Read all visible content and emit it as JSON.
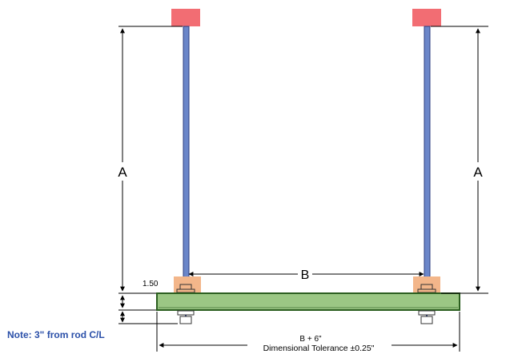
{
  "labels": {
    "dim_a_left": "A",
    "dim_a_right": "A",
    "dim_b": "B",
    "dim_150": "1.50",
    "dim_b_plus": "B + 6\"",
    "tolerance": "Dimensional Tolerance ±0.25\"",
    "note": "Note: 3\" from rod C/L"
  },
  "colors": {
    "rod_fill": "#6b86c9",
    "rod_edge": "#2d3f80",
    "ceiling_block": "#f26d73",
    "nut_highlight": "#f3b68a",
    "channel_fill": "#9bc784",
    "channel_edge": "#2b5e1f",
    "note_text": "#2a4fa8"
  }
}
